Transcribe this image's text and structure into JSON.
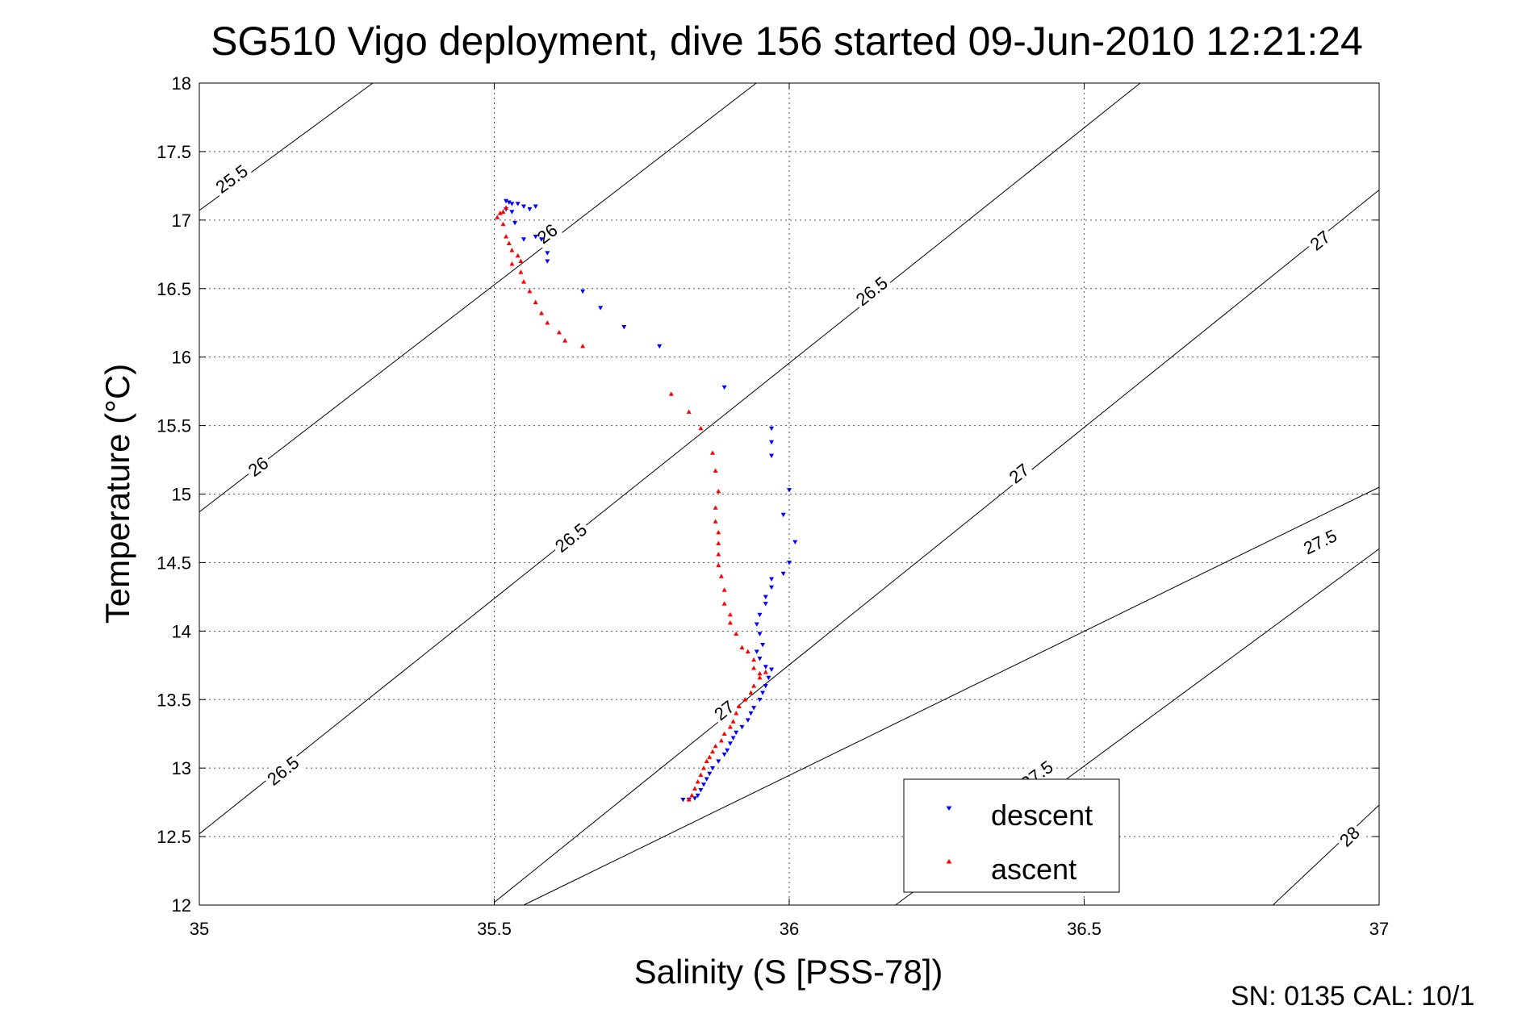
{
  "chart_data": {
    "type": "scatter",
    "title": "SG510 Vigo deployment, dive 156 started 09-Jun-2010 12:21:24",
    "xlabel": "Salinity (S [PSS-78])",
    "ylabel": "Temperature (°C)",
    "xlim": [
      35,
      37
    ],
    "ylim": [
      12,
      18
    ],
    "xticks": [
      "35",
      "35.5",
      "36",
      "36.5",
      "37"
    ],
    "yticks": [
      "12",
      "12.5",
      "13",
      "13.5",
      "14",
      "14.5",
      "15",
      "15.5",
      "16",
      "16.5",
      "17",
      "17.5",
      "18"
    ],
    "grid": true,
    "legend_position": "bottom-right",
    "contour_lines": [
      {
        "label": "25.5",
        "points": [
          [
            35.0,
            17.07
          ],
          [
            35.294,
            18.0
          ]
        ]
      },
      {
        "label": "26",
        "points": [
          [
            35.0,
            14.87
          ],
          [
            35.944,
            18.0
          ]
        ]
      },
      {
        "label": "26.5",
        "points": [
          [
            35.0,
            12.52
          ],
          [
            36.595,
            18.0
          ]
        ]
      },
      {
        "label": "26.5",
        "points": [
          [
            35.5,
            12.02
          ],
          [
            37.0,
            17.22
          ]
        ]
      },
      {
        "label": "27",
        "points": [
          [
            35.55,
            12.0
          ],
          [
            37.0,
            15.05
          ]
        ]
      },
      {
        "label": "27.5",
        "points": [
          [
            36.18,
            12.0
          ],
          [
            37.0,
            14.6
          ]
        ]
      },
      {
        "label": "28",
        "points": [
          [
            36.82,
            12.0
          ],
          [
            37.0,
            12.73
          ]
        ]
      }
    ],
    "contour_labels": [
      {
        "text": "25.5",
        "x": 35.055,
        "y": 17.3
      },
      {
        "text": "26",
        "x": 35.1,
        "y": 15.2
      },
      {
        "text": "26",
        "x": 35.59,
        "y": 16.9
      },
      {
        "text": "26.5",
        "x": 35.142,
        "y": 12.98
      },
      {
        "text": "26.5",
        "x": 35.63,
        "y": 14.68
      },
      {
        "text": "26.5",
        "x": 36.14,
        "y": 16.48
      },
      {
        "text": "27",
        "x": 35.89,
        "y": 13.42
      },
      {
        "text": "27",
        "x": 36.39,
        "y": 15.15
      },
      {
        "text": "27",
        "x": 36.9,
        "y": 16.85
      },
      {
        "text": "27.5",
        "x": 36.42,
        "y": 12.95
      },
      {
        "text": "27.5",
        "x": 36.9,
        "y": 14.65
      },
      {
        "text": "28",
        "x": 36.95,
        "y": 12.5
      }
    ],
    "series": [
      {
        "name": "descent",
        "color": "#0000ff",
        "marker": "triangle-down",
        "points": [
          [
            35.52,
            17.14
          ],
          [
            35.525,
            17.13
          ],
          [
            35.53,
            17.12
          ],
          [
            35.52,
            17.08
          ],
          [
            35.53,
            17.06
          ],
          [
            35.54,
            17.12
          ],
          [
            35.55,
            17.1
          ],
          [
            35.56,
            17.08
          ],
          [
            35.57,
            17.1
          ],
          [
            35.535,
            16.98
          ],
          [
            35.57,
            16.88
          ],
          [
            35.58,
            16.86
          ],
          [
            35.55,
            16.86
          ],
          [
            35.59,
            16.76
          ],
          [
            35.59,
            16.7
          ],
          [
            35.65,
            16.48
          ],
          [
            35.68,
            16.36
          ],
          [
            35.72,
            16.22
          ],
          [
            35.78,
            16.08
          ],
          [
            35.89,
            15.78
          ],
          [
            35.97,
            15.48
          ],
          [
            35.97,
            15.38
          ],
          [
            35.97,
            15.28
          ],
          [
            36.0,
            15.03
          ],
          [
            35.99,
            14.85
          ],
          [
            36.01,
            14.65
          ],
          [
            36.0,
            14.5
          ],
          [
            35.99,
            14.42
          ],
          [
            35.97,
            14.38
          ],
          [
            35.97,
            14.32
          ],
          [
            35.96,
            14.25
          ],
          [
            35.96,
            14.2
          ],
          [
            35.95,
            14.12
          ],
          [
            35.945,
            14.05
          ],
          [
            35.95,
            13.98
          ],
          [
            35.955,
            13.9
          ],
          [
            35.945,
            13.85
          ],
          [
            35.95,
            13.8
          ],
          [
            35.96,
            13.74
          ],
          [
            35.97,
            13.72
          ],
          [
            35.965,
            13.66
          ],
          [
            35.96,
            13.6
          ],
          [
            35.955,
            13.55
          ],
          [
            35.95,
            13.5
          ],
          [
            35.94,
            13.44
          ],
          [
            35.935,
            13.4
          ],
          [
            35.93,
            13.35
          ],
          [
            35.92,
            13.3
          ],
          [
            35.91,
            13.26
          ],
          [
            35.905,
            13.22
          ],
          [
            35.9,
            13.18
          ],
          [
            35.895,
            13.13
          ],
          [
            35.89,
            13.1
          ],
          [
            35.88,
            13.05
          ],
          [
            35.87,
            13.0
          ],
          [
            35.865,
            12.96
          ],
          [
            35.86,
            12.92
          ],
          [
            35.855,
            12.88
          ],
          [
            35.85,
            12.84
          ],
          [
            35.845,
            12.8
          ],
          [
            35.84,
            12.78
          ],
          [
            35.83,
            12.77
          ],
          [
            35.82,
            12.77
          ]
        ]
      },
      {
        "name": "ascent",
        "color": "#ff0000",
        "marker": "triangle-up",
        "points": [
          [
            35.51,
            17.05
          ],
          [
            35.505,
            17.02
          ],
          [
            35.515,
            17.06
          ],
          [
            35.52,
            17.09
          ],
          [
            35.515,
            16.97
          ],
          [
            35.52,
            16.88
          ],
          [
            35.525,
            16.83
          ],
          [
            35.53,
            16.78
          ],
          [
            35.54,
            16.74
          ],
          [
            35.545,
            16.7
          ],
          [
            35.53,
            16.68
          ],
          [
            35.545,
            16.62
          ],
          [
            35.55,
            16.55
          ],
          [
            35.56,
            16.48
          ],
          [
            35.57,
            16.4
          ],
          [
            35.58,
            16.32
          ],
          [
            35.59,
            16.25
          ],
          [
            35.61,
            16.18
          ],
          [
            35.62,
            16.12
          ],
          [
            35.65,
            16.08
          ],
          [
            35.8,
            15.73
          ],
          [
            35.83,
            15.6
          ],
          [
            35.85,
            15.48
          ],
          [
            35.87,
            15.3
          ],
          [
            35.875,
            15.17
          ],
          [
            35.88,
            15.02
          ],
          [
            35.875,
            14.9
          ],
          [
            35.875,
            14.8
          ],
          [
            35.88,
            14.72
          ],
          [
            35.88,
            14.64
          ],
          [
            35.88,
            14.56
          ],
          [
            35.88,
            14.48
          ],
          [
            35.885,
            14.4
          ],
          [
            35.89,
            14.3
          ],
          [
            35.89,
            14.2
          ],
          [
            35.9,
            14.12
          ],
          [
            35.9,
            14.06
          ],
          [
            35.91,
            13.98
          ],
          [
            35.92,
            13.88
          ],
          [
            35.93,
            13.85
          ],
          [
            35.94,
            13.79
          ],
          [
            35.94,
            13.73
          ],
          [
            35.95,
            13.69
          ],
          [
            35.96,
            13.7
          ],
          [
            35.95,
            13.66
          ],
          [
            35.94,
            13.6
          ],
          [
            35.935,
            13.55
          ],
          [
            35.925,
            13.5
          ],
          [
            35.915,
            13.45
          ],
          [
            35.91,
            13.4
          ],
          [
            35.905,
            13.34
          ],
          [
            35.9,
            13.3
          ],
          [
            35.89,
            13.25
          ],
          [
            35.885,
            13.2
          ],
          [
            35.875,
            13.16
          ],
          [
            35.87,
            13.12
          ],
          [
            35.865,
            13.08
          ],
          [
            35.86,
            13.05
          ],
          [
            35.855,
            13.0
          ],
          [
            35.85,
            12.95
          ],
          [
            35.845,
            12.9
          ],
          [
            35.84,
            12.85
          ],
          [
            35.835,
            12.8
          ],
          [
            35.83,
            12.77
          ]
        ]
      }
    ]
  },
  "footer": {
    "sensor_info": "SN: 0135  CAL: 10/1"
  }
}
